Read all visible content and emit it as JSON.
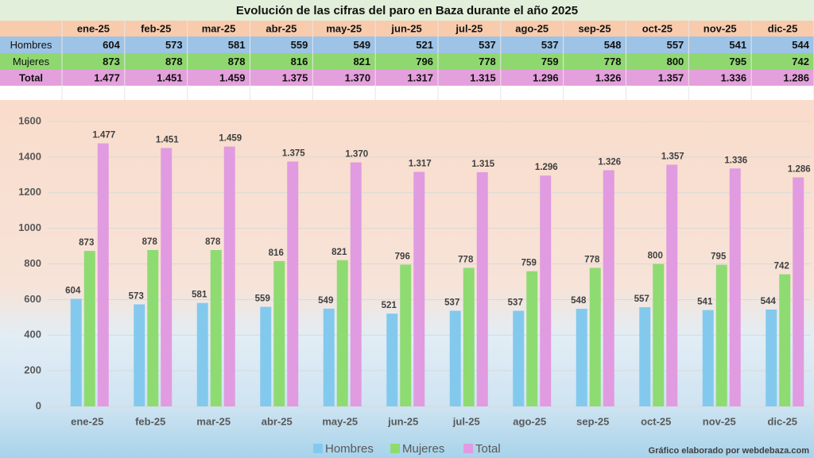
{
  "table": {
    "title": "Evolución de las cifras del paro en Baza durante el año 2025",
    "columns": [
      "ene-25",
      "feb-25",
      "mar-25",
      "abr-25",
      "may-25",
      "jun-25",
      "jul-25",
      "ago-25",
      "sep-25",
      "oct-25",
      "nov-25",
      "dic-25"
    ],
    "rows": [
      {
        "label": "Hombres",
        "cells": [
          "604",
          "573",
          "581",
          "559",
          "549",
          "521",
          "537",
          "537",
          "548",
          "557",
          "541",
          "544"
        ]
      },
      {
        "label": "Mujeres",
        "cells": [
          "873",
          "878",
          "878",
          "816",
          "821",
          "796",
          "778",
          "759",
          "778",
          "800",
          "795",
          "742"
        ]
      },
      {
        "label": "Total",
        "cells": [
          "1.477",
          "1.451",
          "1.459",
          "1.375",
          "1.370",
          "1.317",
          "1.315",
          "1.296",
          "1.326",
          "1.357",
          "1.336",
          "1.286"
        ]
      }
    ]
  },
  "chart_data": {
    "type": "bar",
    "categories": [
      "ene-25",
      "feb-25",
      "mar-25",
      "abr-25",
      "may-25",
      "jun-25",
      "jul-25",
      "ago-25",
      "sep-25",
      "oct-25",
      "nov-25",
      "dic-25"
    ],
    "series": [
      {
        "name": "Hombres",
        "color": "#83c9ee",
        "values": [
          604,
          573,
          581,
          559,
          549,
          521,
          537,
          537,
          548,
          557,
          541,
          544
        ]
      },
      {
        "name": "Mujeres",
        "color": "#8edb72",
        "values": [
          873,
          878,
          878,
          816,
          821,
          796,
          778,
          759,
          778,
          800,
          795,
          742
        ]
      },
      {
        "name": "Total",
        "color": "#e19be0",
        "values": [
          1477,
          1451,
          1459,
          1375,
          1370,
          1317,
          1315,
          1296,
          1326,
          1357,
          1336,
          1286
        ],
        "value_labels": [
          "1.477",
          "1.451",
          "1.459",
          "1.375",
          "1.370",
          "1.317",
          "1.315",
          "1.296",
          "1.326",
          "1.357",
          "1.336",
          "1.286"
        ]
      }
    ],
    "ylim": [
      0,
      1600
    ],
    "yticks": [
      0,
      200,
      400,
      600,
      800,
      1000,
      1200,
      1400,
      1600
    ],
    "grid": true,
    "legend": "bottom",
    "credit": "Gráfico elaborado por webdebaza.com"
  }
}
